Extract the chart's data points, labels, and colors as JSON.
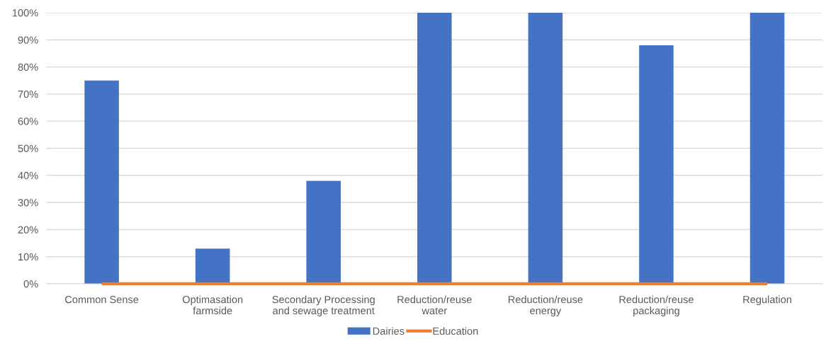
{
  "chart_data": {
    "type": "bar",
    "categories": [
      "Common Sense",
      "Optimasation\nfarmside",
      "Secondary Processing\nand sewage treatment",
      "Reduction/reuse\nwater",
      "Reduction/reuse\nenergy",
      "Reduction/reuse\npackaging",
      "Regulation"
    ],
    "series": [
      {
        "name": "Dairies",
        "color": "#4472c4",
        "values": [
          75,
          13,
          38,
          100,
          100,
          88,
          100
        ]
      },
      {
        "name": "Education",
        "type": "line",
        "color": "#ed7d31",
        "values": [
          0,
          0,
          0,
          0,
          0,
          0,
          0
        ]
      }
    ],
    "ylim": [
      0,
      100
    ],
    "yticks": [
      {
        "value": 0,
        "label": "0%"
      },
      {
        "value": 10,
        "label": "10%"
      },
      {
        "value": 20,
        "label": "20%"
      },
      {
        "value": 30,
        "label": "30%"
      },
      {
        "value": 40,
        "label": "40%"
      },
      {
        "value": 50,
        "label": "50%"
      },
      {
        "value": 60,
        "label": "60%"
      },
      {
        "value": 70,
        "label": "70%"
      },
      {
        "value": 80,
        "label": "80%"
      },
      {
        "value": 90,
        "label": "90%"
      },
      {
        "value": 100,
        "label": "100%"
      }
    ],
    "grid": "y",
    "legend": "bottom"
  }
}
